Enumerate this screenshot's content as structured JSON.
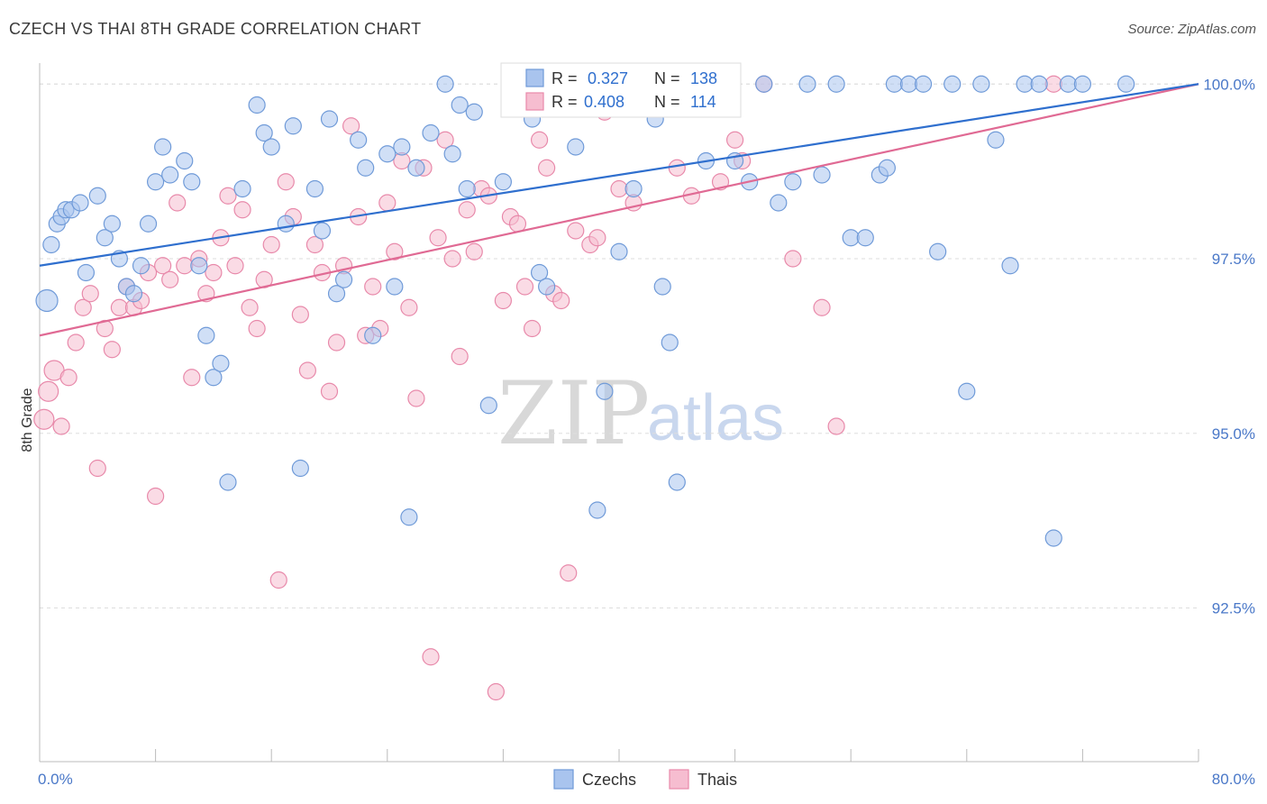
{
  "header": {
    "title": "CZECH VS THAI 8TH GRADE CORRELATION CHART",
    "source": "Source: ZipAtlas.com"
  },
  "watermark": {
    "zip": "ZIP",
    "atlas": "atlas"
  },
  "legend_top": {
    "czech": {
      "r_label": "R =",
      "r_value": "0.327",
      "n_label": "N =",
      "n_value": "138"
    },
    "thai": {
      "r_label": "R =",
      "r_value": "0.408",
      "n_label": "N =",
      "n_value": "114"
    }
  },
  "legend_bottom": {
    "czech": "Czechs",
    "thai": "Thais"
  },
  "colors": {
    "czech_fill": "#a9c4ee",
    "czech_stroke": "#6f9ad8",
    "czech_line": "#2f6fce",
    "thai_fill": "#f6bdd0",
    "thai_stroke": "#e889aa",
    "thai_line": "#e06a94",
    "tick_text": "#4a78c8",
    "grid": "#dddddd"
  },
  "chart_data": {
    "type": "scatter",
    "title": "CZECH VS THAI 8TH GRADE CORRELATION CHART",
    "ylabel": "8th Grade",
    "xlabel": "",
    "xlim": [
      0,
      80
    ],
    "ylim": [
      90.3,
      100.3
    ],
    "x_tick_labels": [
      "0.0%",
      "80.0%"
    ],
    "y_ticks": [
      92.5,
      95.0,
      97.5,
      100.0
    ],
    "y_tick_labels": [
      "92.5%",
      "95.0%",
      "97.5%",
      "100.0%"
    ],
    "grid": true,
    "legend_placement": "top-center",
    "series": [
      {
        "name": "Czechs",
        "R": 0.327,
        "N": 138,
        "trend": [
          [
            0,
            97.4
          ],
          [
            80,
            100.0
          ]
        ],
        "points": [
          [
            0.5,
            96.9
          ],
          [
            0.8,
            97.7
          ],
          [
            1.2,
            98.0
          ],
          [
            1.5,
            98.1
          ],
          [
            1.8,
            98.2
          ],
          [
            2.2,
            98.2
          ],
          [
            2.8,
            98.3
          ],
          [
            3.2,
            97.3
          ],
          [
            4.0,
            98.4
          ],
          [
            4.5,
            97.8
          ],
          [
            5.0,
            98.0
          ],
          [
            5.5,
            97.5
          ],
          [
            6.0,
            97.1
          ],
          [
            6.5,
            97.0
          ],
          [
            7.0,
            97.4
          ],
          [
            7.5,
            98.0
          ],
          [
            8.0,
            98.6
          ],
          [
            8.5,
            99.1
          ],
          [
            9.0,
            98.7
          ],
          [
            10.0,
            98.9
          ],
          [
            10.5,
            98.6
          ],
          [
            11.0,
            97.4
          ],
          [
            11.5,
            96.4
          ],
          [
            12.0,
            95.8
          ],
          [
            12.5,
            96.0
          ],
          [
            13.0,
            94.3
          ],
          [
            14.0,
            98.5
          ],
          [
            15.0,
            99.7
          ],
          [
            15.5,
            99.3
          ],
          [
            16.0,
            99.1
          ],
          [
            17.0,
            98.0
          ],
          [
            17.5,
            99.4
          ],
          [
            18.0,
            94.5
          ],
          [
            19.0,
            98.5
          ],
          [
            19.5,
            97.9
          ],
          [
            20.0,
            99.5
          ],
          [
            20.5,
            97.0
          ],
          [
            21.0,
            97.2
          ],
          [
            22.0,
            99.2
          ],
          [
            22.5,
            98.8
          ],
          [
            23.0,
            96.4
          ],
          [
            24.0,
            99.0
          ],
          [
            24.5,
            97.1
          ],
          [
            25.0,
            99.1
          ],
          [
            25.5,
            93.8
          ],
          [
            26.0,
            98.8
          ],
          [
            27.0,
            99.3
          ],
          [
            28.0,
            100.0
          ],
          [
            28.5,
            99.0
          ],
          [
            29.0,
            99.7
          ],
          [
            29.5,
            98.5
          ],
          [
            30.0,
            99.6
          ],
          [
            31.0,
            95.4
          ],
          [
            32.0,
            98.6
          ],
          [
            33.0,
            100.0
          ],
          [
            34.0,
            99.5
          ],
          [
            34.5,
            97.3
          ],
          [
            35.0,
            97.1
          ],
          [
            36.0,
            100.0
          ],
          [
            37.0,
            99.1
          ],
          [
            38.0,
            100.0
          ],
          [
            38.5,
            93.9
          ],
          [
            39.0,
            95.6
          ],
          [
            40.0,
            97.6
          ],
          [
            41.0,
            98.5
          ],
          [
            42.0,
            100.0
          ],
          [
            42.5,
            99.5
          ],
          [
            43.0,
            97.1
          ],
          [
            43.5,
            96.3
          ],
          [
            44.0,
            94.3
          ],
          [
            45.0,
            100.0
          ],
          [
            46.0,
            98.9
          ],
          [
            47.0,
            100.0
          ],
          [
            48.0,
            98.9
          ],
          [
            49.0,
            98.6
          ],
          [
            50.0,
            100.0
          ],
          [
            51.0,
            98.3
          ],
          [
            52.0,
            98.6
          ],
          [
            53.0,
            100.0
          ],
          [
            54.0,
            98.7
          ],
          [
            55.0,
            100.0
          ],
          [
            56.0,
            97.8
          ],
          [
            57.0,
            97.8
          ],
          [
            58.0,
            98.7
          ],
          [
            58.5,
            98.8
          ],
          [
            59.0,
            100.0
          ],
          [
            60.0,
            100.0
          ],
          [
            61.0,
            100.0
          ],
          [
            62.0,
            97.6
          ],
          [
            63.0,
            100.0
          ],
          [
            64.0,
            95.6
          ],
          [
            65.0,
            100.0
          ],
          [
            66.0,
            99.2
          ],
          [
            67.0,
            97.4
          ],
          [
            68.0,
            100.0
          ],
          [
            69.0,
            100.0
          ],
          [
            70.0,
            93.5
          ],
          [
            71.0,
            100.0
          ],
          [
            72.0,
            100.0
          ],
          [
            75.0,
            100.0
          ]
        ]
      },
      {
        "name": "Thais",
        "R": 0.408,
        "N": 114,
        "trend": [
          [
            0,
            96.4
          ],
          [
            80,
            100.0
          ]
        ],
        "points": [
          [
            0.3,
            95.2
          ],
          [
            0.6,
            95.6
          ],
          [
            1.0,
            95.9
          ],
          [
            1.5,
            95.1
          ],
          [
            2.0,
            95.8
          ],
          [
            2.5,
            96.3
          ],
          [
            3.0,
            96.8
          ],
          [
            3.5,
            97.0
          ],
          [
            4.0,
            94.5
          ],
          [
            4.5,
            96.5
          ],
          [
            5.0,
            96.2
          ],
          [
            5.5,
            96.8
          ],
          [
            6.0,
            97.1
          ],
          [
            6.5,
            96.8
          ],
          [
            7.0,
            96.9
          ],
          [
            7.5,
            97.3
          ],
          [
            8.0,
            94.1
          ],
          [
            8.5,
            97.4
          ],
          [
            9.0,
            97.2
          ],
          [
            9.5,
            98.3
          ],
          [
            10.0,
            97.4
          ],
          [
            10.5,
            95.8
          ],
          [
            11.0,
            97.5
          ],
          [
            11.5,
            97.0
          ],
          [
            12.0,
            97.3
          ],
          [
            12.5,
            97.8
          ],
          [
            13.0,
            98.4
          ],
          [
            13.5,
            97.4
          ],
          [
            14.0,
            98.2
          ],
          [
            14.5,
            96.8
          ],
          [
            15.0,
            96.5
          ],
          [
            15.5,
            97.2
          ],
          [
            16.0,
            97.7
          ],
          [
            16.5,
            92.9
          ],
          [
            17.0,
            98.6
          ],
          [
            17.5,
            98.1
          ],
          [
            18.0,
            96.7
          ],
          [
            18.5,
            95.9
          ],
          [
            19.0,
            97.7
          ],
          [
            19.5,
            97.3
          ],
          [
            20.0,
            95.6
          ],
          [
            20.5,
            96.3
          ],
          [
            21.0,
            97.4
          ],
          [
            21.5,
            99.4
          ],
          [
            22.0,
            98.1
          ],
          [
            22.5,
            96.4
          ],
          [
            23.0,
            97.1
          ],
          [
            23.5,
            96.5
          ],
          [
            24.0,
            98.3
          ],
          [
            24.5,
            97.6
          ],
          [
            25.0,
            98.9
          ],
          [
            25.5,
            96.8
          ],
          [
            26.0,
            95.5
          ],
          [
            26.5,
            98.8
          ],
          [
            27.0,
            91.8
          ],
          [
            27.5,
            97.8
          ],
          [
            28.0,
            99.2
          ],
          [
            28.5,
            97.5
          ],
          [
            29.0,
            96.1
          ],
          [
            29.5,
            98.2
          ],
          [
            30.0,
            97.6
          ],
          [
            30.5,
            98.5
          ],
          [
            31.0,
            98.4
          ],
          [
            31.5,
            91.3
          ],
          [
            32.0,
            96.9
          ],
          [
            32.5,
            98.1
          ],
          [
            33.0,
            98.0
          ],
          [
            33.5,
            97.1
          ],
          [
            34.0,
            96.5
          ],
          [
            34.5,
            99.2
          ],
          [
            35.0,
            98.8
          ],
          [
            35.5,
            97.0
          ],
          [
            36.0,
            96.9
          ],
          [
            36.5,
            93.0
          ],
          [
            37.0,
            97.9
          ],
          [
            37.5,
            100.0
          ],
          [
            38.0,
            97.7
          ],
          [
            38.5,
            97.8
          ],
          [
            39.0,
            99.6
          ],
          [
            40.0,
            98.5
          ],
          [
            41.0,
            98.3
          ],
          [
            42.0,
            100.0
          ],
          [
            43.0,
            100.0
          ],
          [
            44.0,
            98.8
          ],
          [
            45.0,
            98.4
          ],
          [
            46.0,
            99.8
          ],
          [
            47.0,
            98.6
          ],
          [
            48.0,
            99.2
          ],
          [
            48.5,
            98.9
          ],
          [
            50.0,
            100.0
          ],
          [
            52.0,
            97.5
          ],
          [
            54.0,
            96.8
          ],
          [
            55.0,
            95.1
          ],
          [
            70.0,
            100.0
          ]
        ]
      }
    ]
  }
}
